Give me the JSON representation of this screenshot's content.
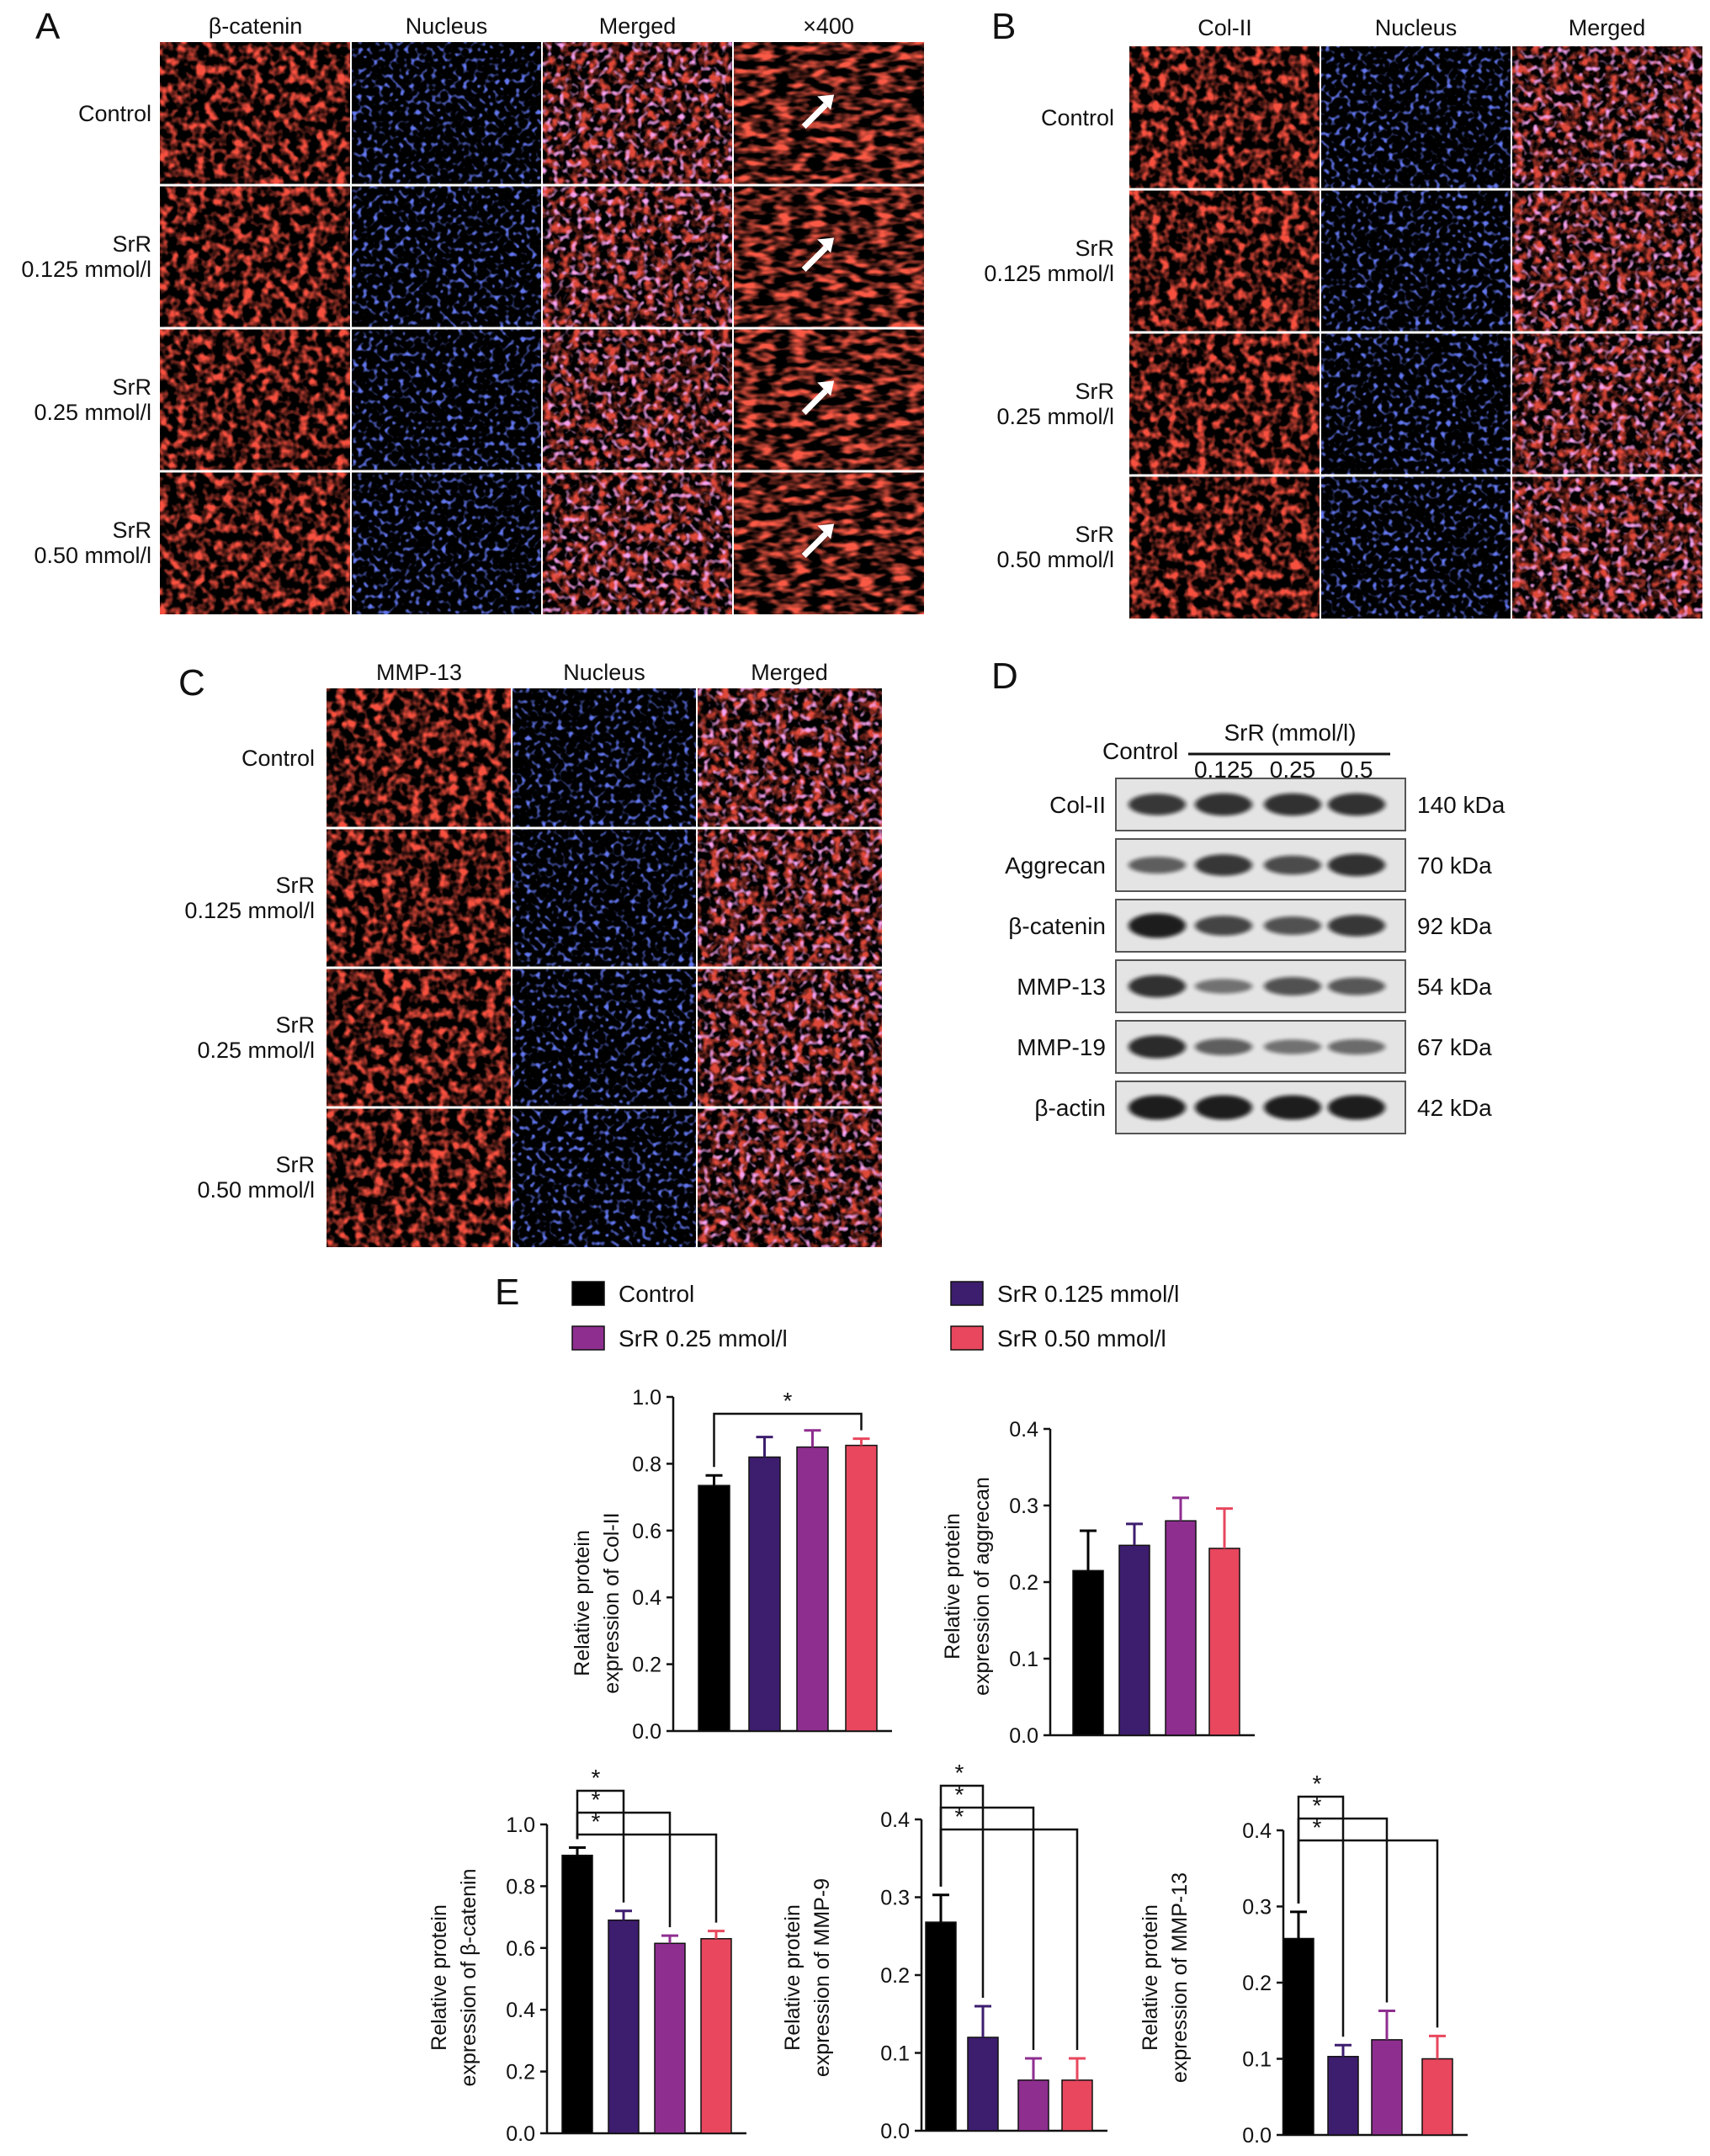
{
  "panel_labels": {
    "A": "A",
    "B": "B",
    "C": "C",
    "D": "D",
    "E": "E"
  },
  "microscopy": {
    "A": {
      "columns": [
        "β-catenin",
        "Nucleus",
        "Merged",
        "×400"
      ],
      "rows": [
        [
          "Control"
        ],
        [
          "SrR",
          "0.125 mmol/l"
        ],
        [
          "SrR",
          "0.25 mmol/l"
        ],
        [
          "SrR",
          "0.50 mmol/l"
        ]
      ]
    },
    "B": {
      "columns": [
        "Col-II",
        "Nucleus",
        "Merged"
      ],
      "rows": [
        [
          "Control"
        ],
        [
          "SrR",
          "0.125 mmol/l"
        ],
        [
          "SrR",
          "0.25 mmol/l"
        ],
        [
          "SrR",
          "0.50 mmol/l"
        ]
      ]
    },
    "C": {
      "columns": [
        "MMP-13",
        "Nucleus",
        "Merged"
      ],
      "rows": [
        [
          "Control"
        ],
        [
          "SrR",
          "0.125 mmol/l"
        ],
        [
          "SrR",
          "0.25 mmol/l"
        ],
        [
          "SrR",
          "0.50 mmol/l"
        ]
      ]
    },
    "colors": {
      "red_stain": "#e81e10",
      "blue_stain": "#1a28c8",
      "background": "#000000"
    }
  },
  "western_blot": {
    "control_label": "Control",
    "srr_header": "SrR (mmol/l)",
    "doses": [
      "0.125",
      "0.25",
      "0.5"
    ],
    "proteins": [
      {
        "name": "Col-II",
        "size": "140 kDa",
        "intensity": [
          0.75,
          0.8,
          0.8,
          0.8
        ]
      },
      {
        "name": "Aggrecan",
        "size": "70 kDa",
        "intensity": [
          0.45,
          0.75,
          0.6,
          0.8
        ]
      },
      {
        "name": "β-catenin",
        "size": "92 kDa",
        "intensity": [
          0.95,
          0.65,
          0.55,
          0.75
        ]
      },
      {
        "name": "MMP-13",
        "size": "54 kDa",
        "intensity": [
          0.8,
          0.3,
          0.55,
          0.5
        ]
      },
      {
        "name": "MMP-19",
        "size": "67 kDa",
        "intensity": [
          0.85,
          0.45,
          0.3,
          0.35
        ]
      },
      {
        "name": "β-actin",
        "size": "42 kDa",
        "intensity": [
          0.95,
          0.95,
          0.95,
          0.95
        ]
      }
    ]
  },
  "legend": [
    {
      "label": "Control",
      "color": "#000000"
    },
    {
      "label": "SrR 0.125 mmol/l",
      "color": "#3d1d6e"
    },
    {
      "label": "SrR 0.25 mmol/l",
      "color": "#8e2e8f"
    },
    {
      "label": "SrR 0.50 mmol/l",
      "color": "#e8475e"
    }
  ],
  "chart_data": [
    {
      "type": "bar",
      "ylabel": [
        "Relative protein",
        "expression of Col-II"
      ],
      "categories": [
        "Control",
        "SrR 0.125 mmol/l",
        "SrR 0.25 mmol/l",
        "SrR 0.50 mmol/l"
      ],
      "values": [
        0.735,
        0.82,
        0.85,
        0.855
      ],
      "errors": [
        0.03,
        0.06,
        0.05,
        0.02
      ],
      "ylim": [
        0,
        1.0
      ],
      "yticks": [
        "0.0",
        "0.2",
        "0.4",
        "0.6",
        "0.8",
        "1.0"
      ],
      "significance": [
        {
          "from": 0,
          "to": 3,
          "mark": "*"
        }
      ]
    },
    {
      "type": "bar",
      "ylabel": [
        "Relative protein",
        "expression of aggrecan"
      ],
      "categories": [
        "Control",
        "SrR 0.125 mmol/l",
        "SrR 0.25 mmol/l",
        "SrR 0.50 mmol/l"
      ],
      "values": [
        0.215,
        0.248,
        0.28,
        0.244
      ],
      "errors": [
        0.052,
        0.028,
        0.03,
        0.052
      ],
      "ylim": [
        0,
        0.4
      ],
      "yticks": [
        "0.0",
        "0.1",
        "0.2",
        "0.3",
        "0.4"
      ],
      "significance": []
    },
    {
      "type": "bar",
      "ylabel": [
        "Relative protein",
        "expression of β-catenin"
      ],
      "categories": [
        "Control",
        "SrR 0.125 mmol/l",
        "SrR 0.25 mmol/l",
        "SrR 0.50 mmol/l"
      ],
      "values": [
        0.9,
        0.69,
        0.615,
        0.63
      ],
      "errors": [
        0.025,
        0.03,
        0.025,
        0.025
      ],
      "ylim": [
        0,
        1.0
      ],
      "yticks": [
        "0.0",
        "0.2",
        "0.4",
        "0.6",
        "0.8",
        "1.0"
      ],
      "significance": [
        {
          "from": 0,
          "to": 1,
          "mark": "*"
        },
        {
          "from": 0,
          "to": 2,
          "mark": "*"
        },
        {
          "from": 0,
          "to": 3,
          "mark": "*"
        }
      ]
    },
    {
      "type": "bar",
      "ylabel": [
        "Relative protein",
        "expression of MMP-9"
      ],
      "categories": [
        "Control",
        "SrR 0.125 mmol/l",
        "SrR 0.25 mmol/l",
        "SrR 0.50 mmol/l"
      ],
      "values": [
        0.268,
        0.12,
        0.065,
        0.065
      ],
      "errors": [
        0.035,
        0.04,
        0.028,
        0.028
      ],
      "ylim": [
        0,
        0.4
      ],
      "yticks": [
        "0.0",
        "0.1",
        "0.2",
        "0.3",
        "0.4"
      ],
      "significance": [
        {
          "from": 0,
          "to": 1,
          "mark": "*"
        },
        {
          "from": 0,
          "to": 2,
          "mark": "*"
        },
        {
          "from": 0,
          "to": 3,
          "mark": "*"
        }
      ]
    },
    {
      "type": "bar",
      "ylabel": [
        "Relative protein",
        "expression of MMP-13"
      ],
      "categories": [
        "Control",
        "SrR 0.125 mmol/l",
        "SrR 0.25 mmol/l",
        "SrR 0.50 mmol/l"
      ],
      "values": [
        0.258,
        0.103,
        0.125,
        0.1
      ],
      "errors": [
        0.035,
        0.015,
        0.038,
        0.03
      ],
      "ylim": [
        0,
        0.4
      ],
      "yticks": [
        "0.0",
        "0.1",
        "0.2",
        "0.3",
        "0.4"
      ],
      "significance": [
        {
          "from": 0,
          "to": 1,
          "mark": "*"
        },
        {
          "from": 0,
          "to": 2,
          "mark": "*"
        },
        {
          "from": 0,
          "to": 3,
          "mark": "*"
        }
      ]
    }
  ]
}
